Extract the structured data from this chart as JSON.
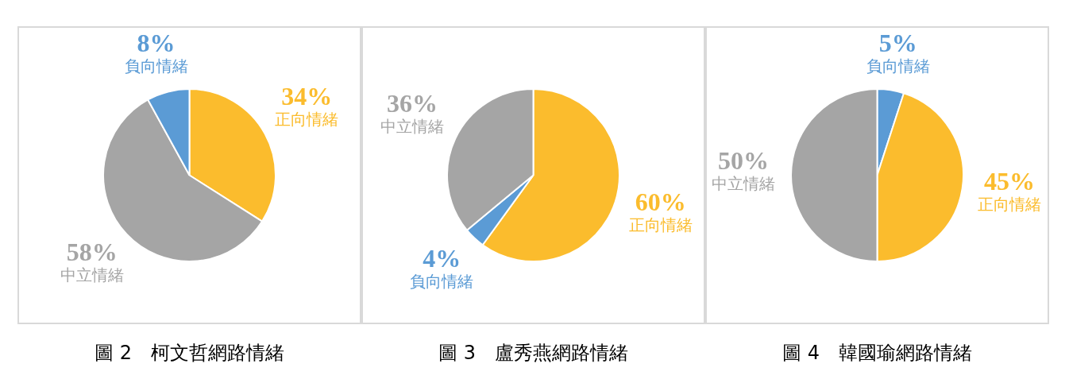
{
  "chart_data": [
    {
      "type": "pie",
      "title": "圖 2　柯文哲網路情緒",
      "categories": [
        "正向情緒",
        "中立情緒",
        "負向情緒"
      ],
      "values": [
        34,
        58,
        8
      ],
      "colors": [
        "#fbbc2d",
        "#a5a5a5",
        "#5b9bd5"
      ],
      "value_labels": [
        "34%",
        "58%",
        "8%"
      ]
    },
    {
      "type": "pie",
      "title": "圖 3　盧秀燕網路情緒",
      "categories": [
        "正向情緒",
        "負向情緒",
        "中立情緒"
      ],
      "values": [
        60,
        4,
        36
      ],
      "colors": [
        "#fbbc2d",
        "#5b9bd5",
        "#a5a5a5"
      ],
      "value_labels": [
        "60%",
        "4%",
        "36%"
      ]
    },
    {
      "type": "pie",
      "title": "圖 4　韓國瑜網路情緒",
      "categories": [
        "負向情緒",
        "正向情緒",
        "中立情緒"
      ],
      "values": [
        5,
        45,
        50
      ],
      "colors": [
        "#5b9bd5",
        "#fbbc2d",
        "#a5a5a5"
      ],
      "value_labels": [
        "5%",
        "45%",
        "50%"
      ]
    }
  ]
}
